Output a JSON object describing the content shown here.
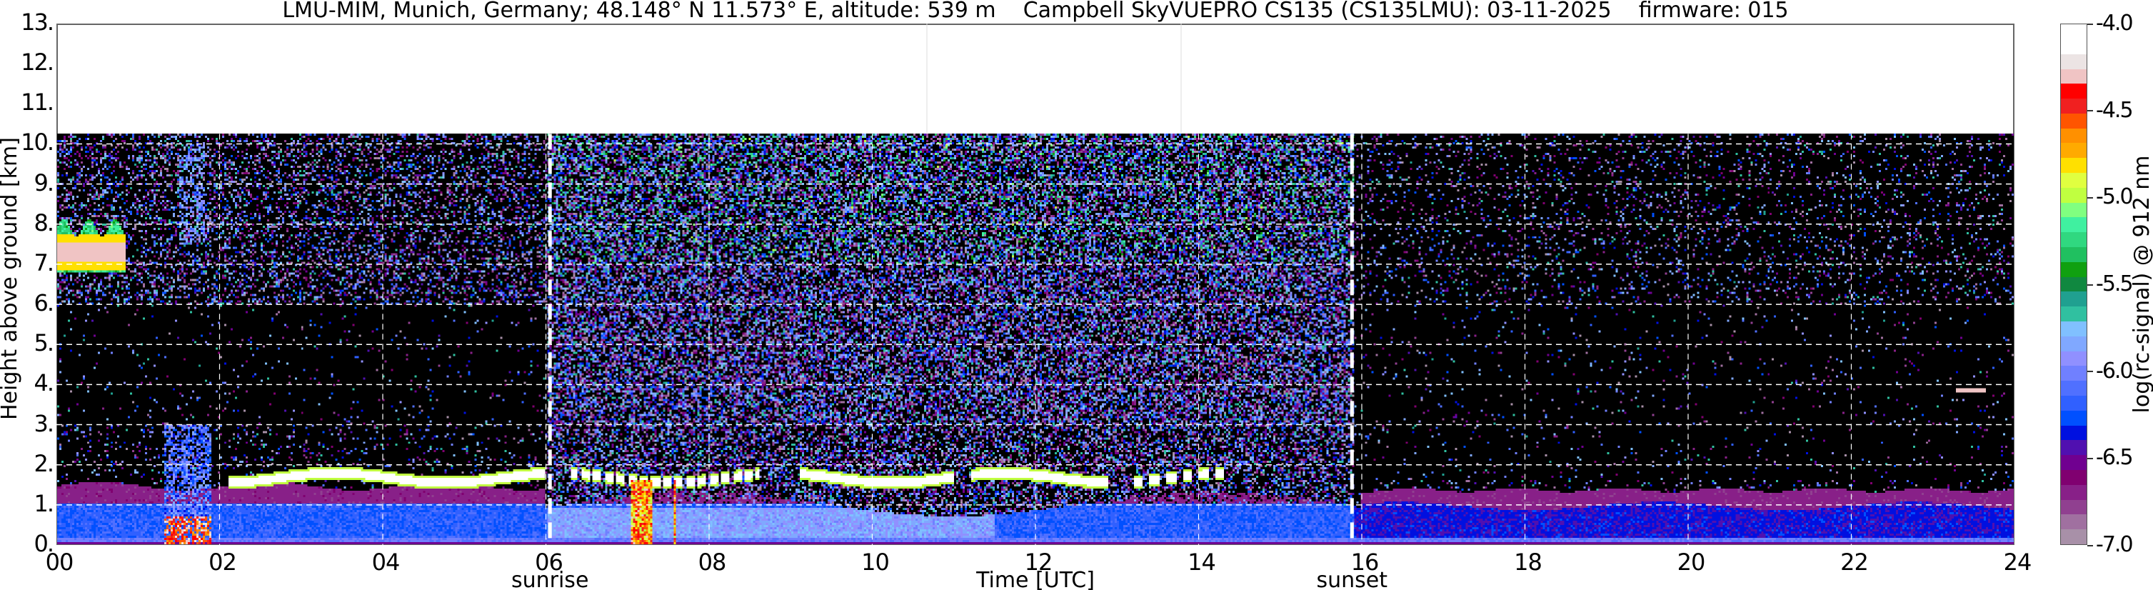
{
  "chart_data": {
    "type": "heatmap",
    "title": "LMU-MIM, Munich, Germany; 48.148° N 11.573° E, altitude: 539 m    Campbell SkyVUEPRO CS135 (CS135LMU): 03-11-2025    firmware: 015",
    "xlabel": "Time [UTC]",
    "ylabel": "Height above ground [km]",
    "xlim": [
      0,
      24
    ],
    "ylim": [
      0,
      13
    ],
    "data_top_km": 10.25,
    "x_ticks": [
      "00",
      "02",
      "04",
      "06",
      "08",
      "10",
      "12",
      "14",
      "16",
      "18",
      "20",
      "22",
      "24"
    ],
    "y_ticks": [
      "0.",
      "1.",
      "2.",
      "3.",
      "4.",
      "5.",
      "6.",
      "7.",
      "8.",
      "9.",
      "10.",
      "11.",
      "12.",
      "13."
    ],
    "grid": true,
    "annotations": [
      {
        "label": "sunrise",
        "time_utc_hours": 6.05
      },
      {
        "label": "sunset",
        "time_utc_hours": 15.88
      }
    ],
    "colorbar": {
      "label": "log(rc-signal) @ 912 nm",
      "range": [
        -7.0,
        -4.0
      ],
      "ticks": [
        "-7.0",
        "-6.5",
        "-6.0",
        "-5.5",
        "-5.0",
        "-4.5",
        "-4.0"
      ],
      "colors_low_to_high": [
        "#a890a8",
        "#a070a0",
        "#904090",
        "#882088",
        "#800070",
        "#700090",
        "#5010b0",
        "#0010e0",
        "#0050ff",
        "#3060ff",
        "#5070ff",
        "#7080ff",
        "#9090ff",
        "#80a8ff",
        "#80c0ff",
        "#30c0a0",
        "#20a090",
        "#108840",
        "#10a010",
        "#20c060",
        "#30d880",
        "#40f0a0",
        "#80ff80",
        "#c0ff40",
        "#e0ff40",
        "#ffe000",
        "#ffaa00",
        "#ff9000",
        "#ff5500",
        "#f02020",
        "#ff0000",
        "#f0c4c4",
        "#ece4e4",
        "#ffffff",
        "#ffffff"
      ]
    }
  }
}
